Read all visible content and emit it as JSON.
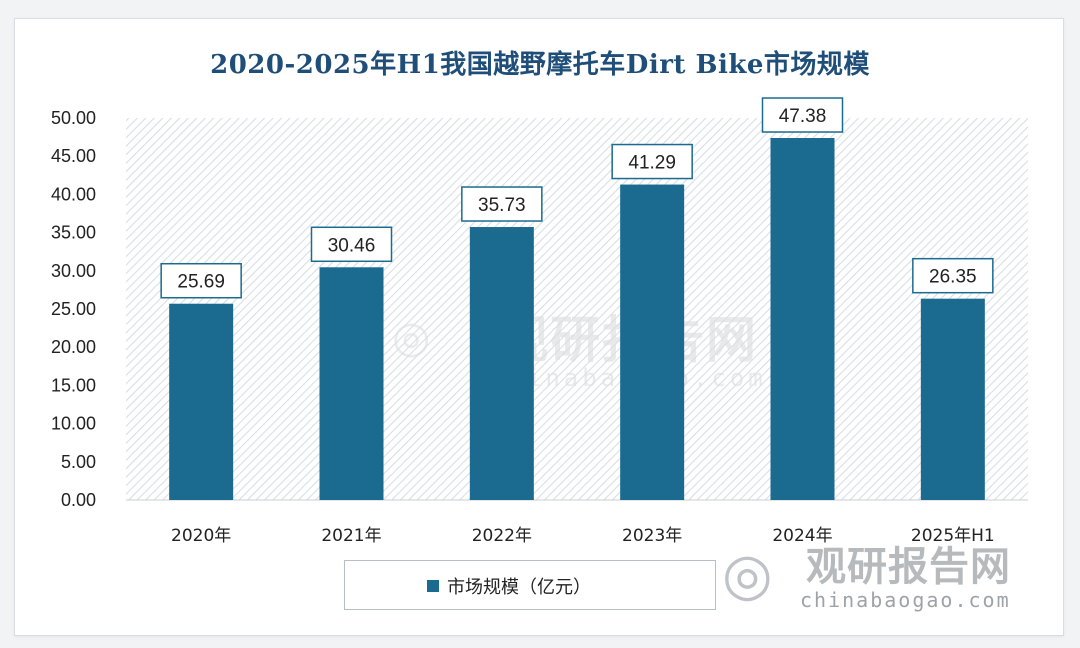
{
  "chart_data": {
    "type": "bar",
    "title": "2020-2025年H1我国越野摩托车Dirt Bike市场规模",
    "categories": [
      "2020年",
      "2021年",
      "2022年",
      "2023年",
      "2024年",
      "2025年H1"
    ],
    "series": [
      {
        "name": "市场规模（亿元）",
        "values": [
          25.69,
          30.46,
          35.73,
          41.29,
          47.38,
          26.35
        ],
        "labels": [
          "25.69",
          "30.46",
          "35.73",
          "41.29",
          "47.38",
          "26.35"
        ]
      }
    ],
    "ylim": [
      0,
      50
    ],
    "yticks": [
      "0.00",
      "5.00",
      "10.00",
      "15.00",
      "20.00",
      "25.00",
      "30.00",
      "35.00",
      "40.00",
      "45.00",
      "50.00"
    ],
    "xlabel": "",
    "ylabel": "",
    "legend": "bottom-center",
    "grid": false,
    "bar_color": "#1a6b8f",
    "plot_background": "hatched-diagonal"
  },
  "watermark": {
    "logo": "chinabaogao-logo-icon",
    "cn": "观研报告网",
    "en": "chinabaogao.com"
  },
  "colors": {
    "title": "#1f4e79",
    "bar": "#1a6b8f",
    "hatch": "#d9dee4",
    "label_border": "#1a6b8f"
  }
}
